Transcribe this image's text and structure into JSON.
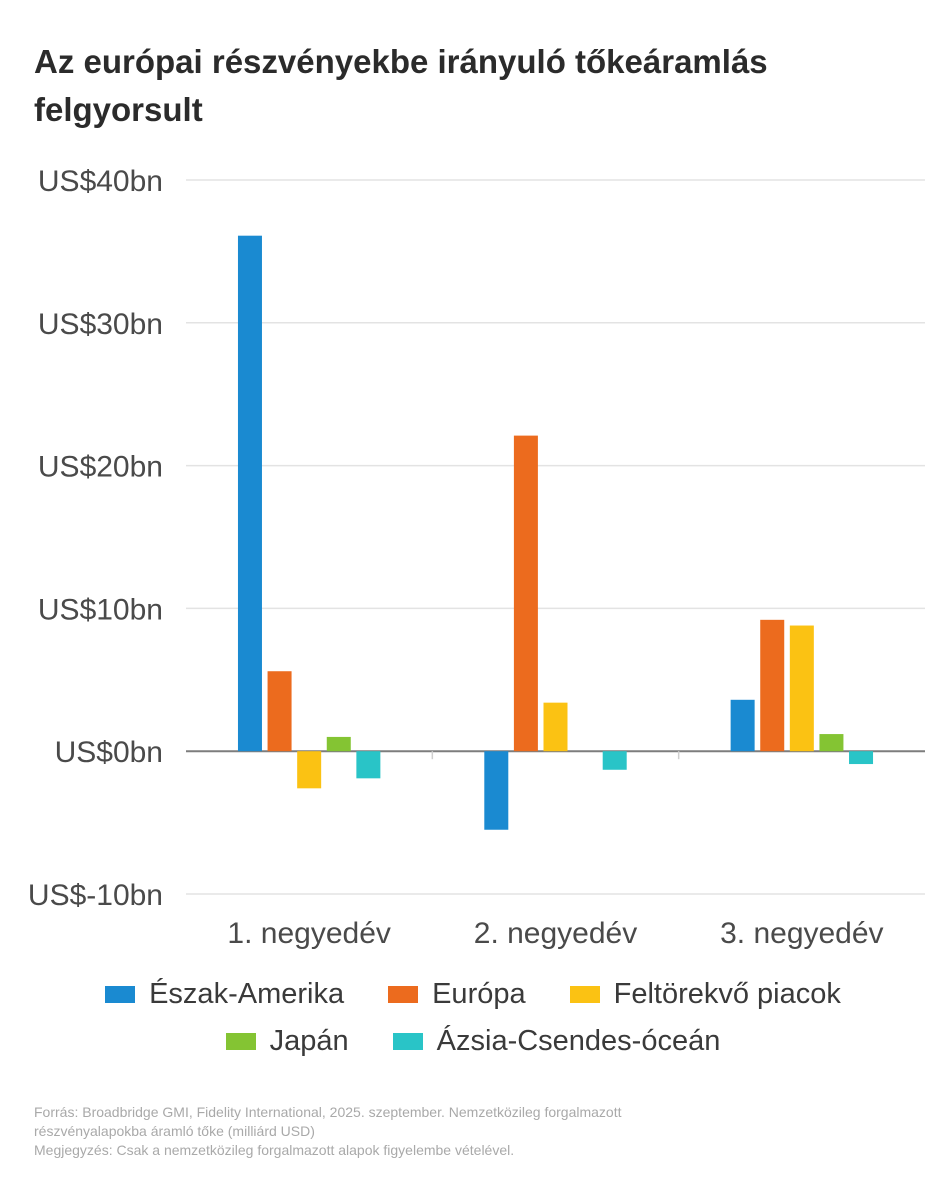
{
  "title": "Az európai részvényekbe irányuló tőkeáramlás felgyorsult",
  "chart_data": {
    "type": "bar",
    "categories": [
      "1. negyedév",
      "2. negyedév",
      "3. negyedév"
    ],
    "series": [
      {
        "name": "Észak-Amerika",
        "color": "#1a8ad1",
        "values": [
          36.1,
          -5.5,
          3.6
        ]
      },
      {
        "name": "Európa",
        "color": "#ec6b1e",
        "values": [
          5.6,
          22.1,
          9.2
        ]
      },
      {
        "name": "Feltörekvő piacok",
        "color": "#fbc213",
        "values": [
          -2.6,
          3.4,
          8.8
        ]
      },
      {
        "name": "Japán",
        "color": "#84c433",
        "values": [
          1.0,
          0,
          1.2
        ]
      },
      {
        "name": "Ázsia-Csendes-óceán",
        "color": "#29c4c7",
        "values": [
          -1.9,
          -1.3,
          -0.9
        ]
      }
    ],
    "yticks": [
      {
        "value": 40,
        "label": "US$40bn"
      },
      {
        "value": 30,
        "label": "US$30bn"
      },
      {
        "value": 20,
        "label": "US$20bn"
      },
      {
        "value": 10,
        "label": "US$10bn"
      },
      {
        "value": 0,
        "label": "US$0bn"
      },
      {
        "value": -10,
        "label": "US$-10bn"
      }
    ],
    "ylim": [
      -10,
      40
    ],
    "grid": true,
    "legend_position": "bottom"
  },
  "notes": {
    "line1": "Forrás: Broadbridge GMI, Fidelity International, 2025. szeptember. Nemzetközileg forgalmazott",
    "line2": "részvényalapokba áramló tőke (milliárd USD)",
    "line3": "Megjegyzés: Csak a nemzetközileg forgalmazott alapok figyelembe vételével."
  }
}
